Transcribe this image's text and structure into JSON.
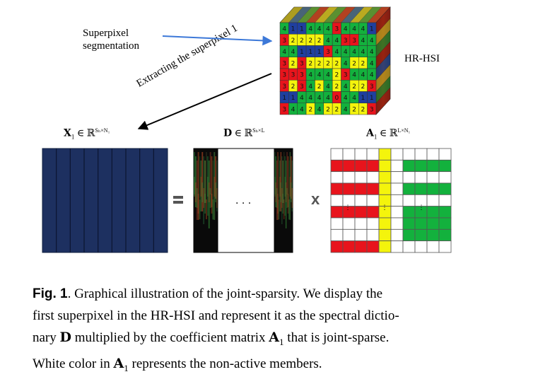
{
  "figure": {
    "segmentation_label_line1": "Superpixel",
    "segmentation_label_line2": "segmentation",
    "extract_label": "Extracting the superpixel 1",
    "hrhsi_label": "HR-HSI",
    "x_label": {
      "symbol": "X",
      "sub": "1",
      "rest": " ∈ ℝ",
      "sup": "Sₕ×N₁"
    },
    "d_label": {
      "symbol": "D",
      "rest": " ∈ ℝ",
      "sup": "Sₕ×L"
    },
    "a_label": {
      "symbol": "A",
      "sub": "1",
      "rest": " ∈ ℝ",
      "sup": "L×N₁"
    },
    "equals": "=",
    "times": "x",
    "dots": "· · ·",
    "cube_grid": [
      "41144434441",
      "32222443344",
      "44111344444",
      "32322224224",
      "33344423444",
      "32342424223",
      "11444404411",
      "34424224223"
    ],
    "colors": {
      "blue": "#1f3f9f",
      "red": "#e8141c",
      "yellow": "#f4f40c",
      "green": "#13b13d",
      "navy": "#1d3060",
      "arrow": "#3c78d8"
    }
  },
  "caption": {
    "fig_label": "Fig. 1",
    "line1": ". Graphical illustration of the joint-sparsity. We display the",
    "line2": "first superpixel in the HR-HSI and represent it as the spectral dictio-",
    "line3a": "nary ",
    "D": "D",
    "line3b": " multiplied by the coefficient matrix ",
    "A": "A",
    "A_sub": "1",
    "line3c": " that is joint-sparse.",
    "line4a": "White color in ",
    "line4b": " represents the non-active members."
  }
}
